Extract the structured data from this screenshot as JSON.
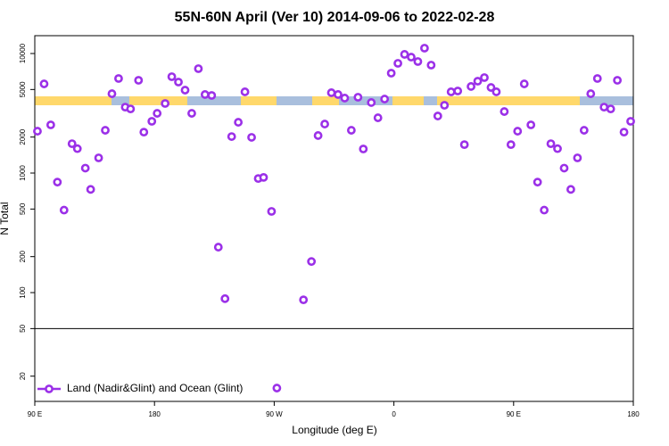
{
  "chart_data": {
    "type": "scatter",
    "title": "55N-60N April (Ver 10)   2014-09-06 to 2022-02-28",
    "x_label": "Longitude (deg E)",
    "y_label": "N Total",
    "xlim": [
      90,
      540
    ],
    "xticks": [
      {
        "value": 90,
        "label": "90 E"
      },
      180,
      {
        "value": 270,
        "label": "90 W"
      },
      {
        "value": 360,
        "label": "0"
      },
      {
        "value": 450,
        "label": "90 E"
      },
      {
        "value": 540,
        "label": "180"
      }
    ],
    "ylim": [
      12.3,
      14100
    ],
    "log_y": true,
    "yticks": [
      20,
      50,
      100,
      200,
      500,
      1000,
      2000,
      5000,
      10000
    ],
    "hline": 50,
    "legend": "bottom-left",
    "series": [
      {
        "name": "Land (Nadir&Glint) and Ocean (Glint)",
        "color": "#9b30e8",
        "x": [
          92,
          97,
          102,
          107,
          112,
          118,
          122,
          128,
          132,
          138,
          143,
          148,
          153,
          158,
          162,
          168,
          172,
          178,
          182,
          188,
          193,
          198,
          203,
          208,
          213,
          218,
          223,
          228,
          233,
          238,
          243,
          248,
          253,
          258,
          262,
          268,
          272,
          292,
          298,
          303,
          308,
          313,
          318,
          323,
          328,
          333,
          337,
          343,
          348,
          353,
          358,
          363,
          368,
          373,
          378,
          383,
          388,
          393,
          398,
          403,
          408,
          413,
          418,
          423,
          428,
          433,
          437,
          443,
          448,
          453,
          458,
          463,
          468,
          473,
          478,
          483,
          488,
          493,
          498,
          503,
          508,
          513,
          518,
          523,
          528,
          533,
          538
        ],
        "values": [
          2240,
          5570,
          2530,
          840,
          490,
          1760,
          1600,
          1100,
          730,
          1340,
          2280,
          4610,
          6180,
          3560,
          3440,
          5970,
          2200,
          2710,
          3160,
          3820,
          6400,
          5770,
          4940,
          3160,
          7470,
          4540,
          4460,
          240,
          89,
          2020,
          2660,
          4780,
          1990,
          900,
          920,
          478,
          15.9,
          87,
          182,
          2060,
          2570,
          4700,
          4540,
          4240,
          2280,
          4310,
          1590,
          3890,
          2900,
          4160,
          6850,
          8280,
          9840,
          9330,
          8570,
          11090,
          8000,
          3000,
          3690,
          4780,
          4860,
          1730,
          5300,
          5870,
          6290,
          5200,
          4780,
          3270,
          1730,
          2240,
          5570,
          2530,
          840,
          490,
          1760,
          1600,
          1100,
          730,
          1340,
          2280,
          4610,
          6180,
          3560,
          3440,
          5970,
          2200,
          2710
        ]
      }
    ]
  }
}
